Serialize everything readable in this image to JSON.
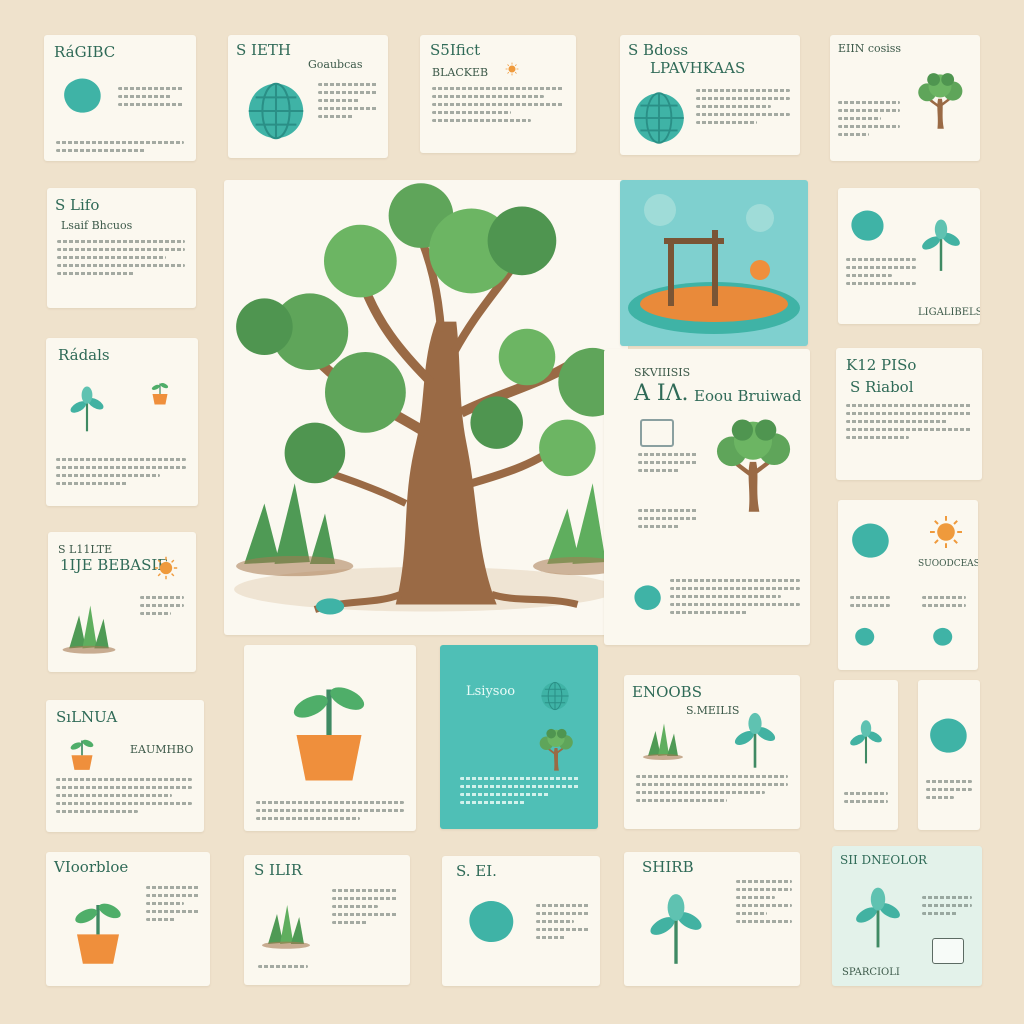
{
  "colors": {
    "background": "#efe2cc",
    "card": "#fbf8ef",
    "teal": "#4fbfb6",
    "leaf_green": "#5fa55a",
    "trunk_brown": "#9a6a45",
    "orange": "#ef8f3c"
  },
  "cards": {
    "r1c1": {
      "title": "RáGIBC"
    },
    "r1c2": {
      "title": "S IETH",
      "subtitle": "Goaubcas"
    },
    "r1c3": {
      "title": "S5Ifict",
      "subtitle": "BLACKEB"
    },
    "r1c4": {
      "title": "S Bdoss",
      "subtitle": "LPAVHKAAS"
    },
    "r1c5": {
      "title": "EIIN cosiss"
    },
    "r2c1": {
      "title": "S Lifo",
      "subtitle": "Lsaif Bhcuos"
    },
    "r2c5": {
      "footer": "LIGALIBELS"
    },
    "r3c1": {
      "title": "Rádals"
    },
    "r3c3": {
      "title": "SKVIIISIS",
      "subtitle": "A   IΛ.",
      "heading": "Eoou Bruiwad"
    },
    "r3c5": {
      "title": "K12 PISo",
      "subtitle": "S Riabol"
    },
    "r4c1": {
      "title": "S L11LTE",
      "subtitle": "1ĲE BEBASIE"
    },
    "r4c5": {
      "title": "SUOODCEAS"
    },
    "r5c1": {
      "title": "SıLNUA",
      "subtitle": "EAUMHBO"
    },
    "r5c3": {
      "title": "Lsiysoo"
    },
    "r5c4": {
      "title": "ENOOBS",
      "subtitle": "S.MEILIS"
    },
    "r6c1": {
      "title": "VIoorbloe"
    },
    "r6c2": {
      "title": "S ILIR"
    },
    "r6c3": {
      "title": "S. EI."
    },
    "r6c4": {
      "title": "SHIRB"
    },
    "r6c5": {
      "title": "SII DNEOLOR",
      "footer": "SPARCIOLI"
    }
  }
}
